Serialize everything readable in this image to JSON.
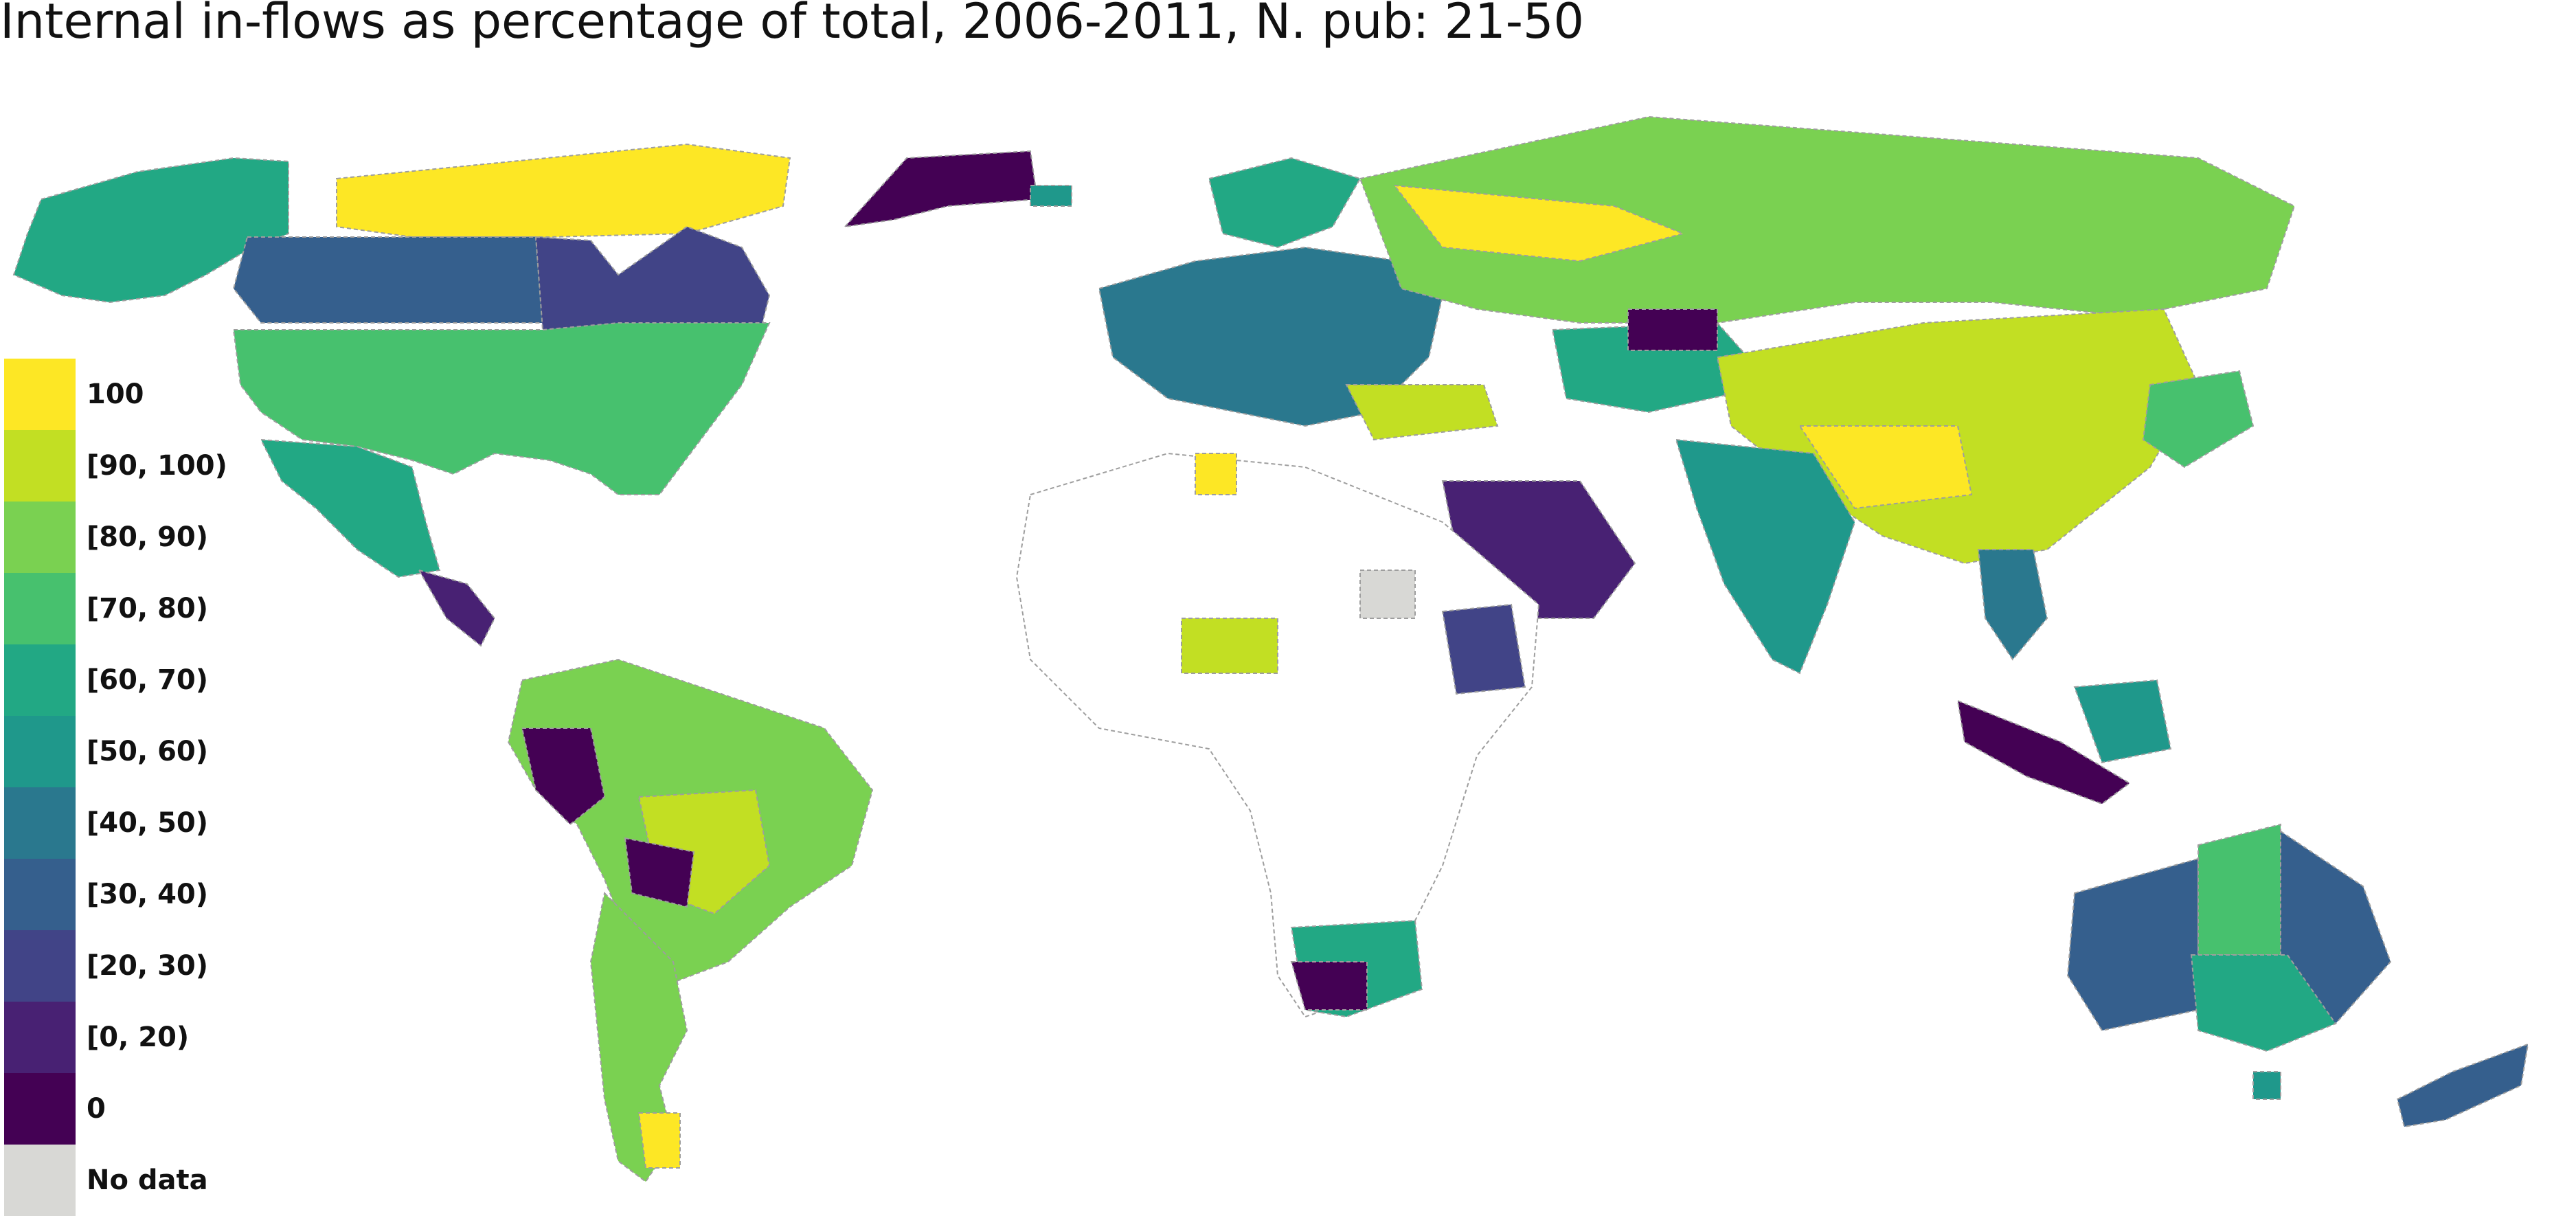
{
  "title": "Internal in-flows as percentage of total, 2006-2011, N. pub: 21-50",
  "colors": {
    "c100": "#fde725",
    "c90": "#c2df23",
    "c80": "#7ad151",
    "c70": "#47c16e",
    "c60": "#22a884",
    "c50": "#1f988b",
    "c40": "#2a788e",
    "c30": "#355f8d",
    "c20": "#414487",
    "c0to20": "#482173",
    "c0": "#440154",
    "nodata": "#d8d8d5",
    "border": "#bdbdbd",
    "land_outline": "#9a9a9a"
  },
  "legend": {
    "items": [
      {
        "label": "100",
        "color": "#fde725"
      },
      {
        "label": "[90, 100)",
        "color": "#c2df23"
      },
      {
        "label": "[80, 90)",
        "color": "#7ad151"
      },
      {
        "label": "[70, 80)",
        "color": "#47c16e"
      },
      {
        "label": "[60, 70)",
        "color": "#22a884"
      },
      {
        "label": "[50, 60)",
        "color": "#1f988b"
      },
      {
        "label": "[40, 50)",
        "color": "#2a788e"
      },
      {
        "label": "[30, 40)",
        "color": "#355f8d"
      },
      {
        "label": "[20, 30)",
        "color": "#414487"
      },
      {
        "label": "[0, 20)",
        "color": "#482173"
      },
      {
        "label": "0",
        "color": "#440154"
      },
      {
        "label": "No data",
        "color": "#d8d8d5"
      }
    ]
  }
}
